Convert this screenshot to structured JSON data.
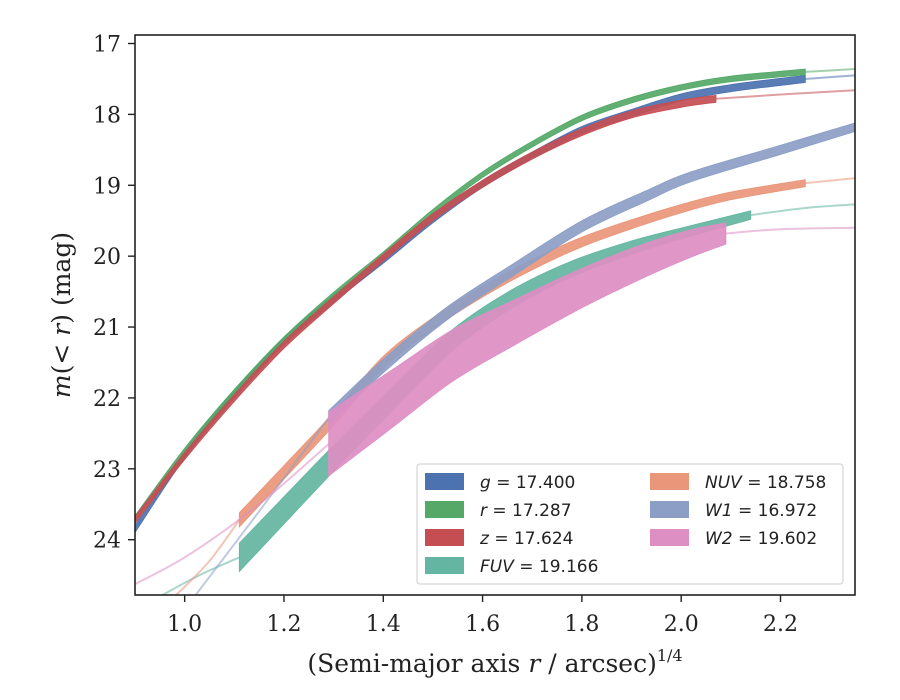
{
  "chart_data": {
    "type": "line",
    "xlabel_prefix": "(Semi-major axis ",
    "xlabel_var": "r",
    "xlabel_mid": " / arcsec)",
    "xlabel_exp": "1/4",
    "ylabel_prefix": "m(< ",
    "ylabel_var": "r",
    "ylabel_suffix": ") (mag)",
    "xlim": [
      0.9,
      2.35
    ],
    "ylim": [
      24.78,
      16.88
    ],
    "y_inverted": true,
    "xticks": [
      "1.0",
      "1.2",
      "1.4",
      "1.6",
      "1.8",
      "2.0",
      "2.2"
    ],
    "yticks": [
      "17",
      "18",
      "19",
      "20",
      "21",
      "22",
      "23",
      "24"
    ],
    "legend_position": "lower-right",
    "legend_columns": 2,
    "series": [
      {
        "name": "g",
        "label_value": "17.400",
        "color": "#4c72b0",
        "data": [
          [
            0.9,
            23.85
          ],
          [
            1.0,
            22.8
          ],
          [
            1.1,
            21.95
          ],
          [
            1.2,
            21.2
          ],
          [
            1.3,
            20.6
          ],
          [
            1.4,
            20.05
          ],
          [
            1.5,
            19.48
          ],
          [
            1.6,
            18.98
          ],
          [
            1.7,
            18.58
          ],
          [
            1.8,
            18.22
          ],
          [
            1.9,
            17.98
          ],
          [
            2.0,
            17.76
          ],
          [
            2.1,
            17.63
          ],
          [
            2.25,
            17.5
          ]
        ],
        "halfwidth": 0.05,
        "model": [
          [
            2.25,
            17.5
          ],
          [
            2.35,
            17.45
          ]
        ]
      },
      {
        "name": "r",
        "label_value": "17.287",
        "color": "#55a868",
        "data": [
          [
            0.9,
            23.7
          ],
          [
            1.0,
            22.75
          ],
          [
            1.1,
            21.92
          ],
          [
            1.2,
            21.18
          ],
          [
            1.3,
            20.55
          ],
          [
            1.4,
            19.98
          ],
          [
            1.5,
            19.38
          ],
          [
            1.6,
            18.85
          ],
          [
            1.7,
            18.42
          ],
          [
            1.8,
            18.05
          ],
          [
            1.9,
            17.8
          ],
          [
            2.0,
            17.62
          ],
          [
            2.1,
            17.5
          ],
          [
            2.25,
            17.4
          ]
        ],
        "halfwidth": 0.04,
        "model": [
          [
            2.25,
            17.4
          ],
          [
            2.35,
            17.36
          ]
        ]
      },
      {
        "name": "z",
        "label_value": "17.624",
        "color": "#c44e52",
        "data": [
          [
            0.9,
            23.72
          ],
          [
            1.0,
            22.82
          ],
          [
            1.1,
            22.0
          ],
          [
            1.2,
            21.25
          ],
          [
            1.3,
            20.62
          ],
          [
            1.4,
            20.02
          ],
          [
            1.5,
            19.45
          ],
          [
            1.6,
            18.98
          ],
          [
            1.7,
            18.58
          ],
          [
            1.8,
            18.25
          ],
          [
            1.9,
            18.0
          ],
          [
            2.0,
            17.85
          ],
          [
            2.07,
            17.78
          ]
        ],
        "halfwidth": 0.05,
        "model": [
          [
            2.07,
            17.78
          ],
          [
            2.2,
            17.72
          ],
          [
            2.35,
            17.66
          ]
        ]
      },
      {
        "name": "FUV",
        "label_value": "19.166",
        "color": "#64b5a1",
        "data": [
          [
            1.11,
            24.25
          ],
          [
            1.3,
            22.85
          ],
          [
            1.42,
            22.0
          ],
          [
            1.54,
            21.18
          ],
          [
            1.66,
            20.6
          ],
          [
            1.78,
            20.18
          ],
          [
            1.9,
            19.88
          ],
          [
            2.0,
            19.68
          ],
          [
            2.14,
            19.42
          ]
        ],
        "halfwidth": 0.2,
        "halfwidth_end": 0.06,
        "model": [
          [
            0.95,
            24.8
          ],
          [
            1.03,
            24.5
          ],
          [
            1.11,
            24.25
          ]
        ],
        "model_tail": [
          [
            2.14,
            19.42
          ],
          [
            2.25,
            19.32
          ],
          [
            2.35,
            19.27
          ]
        ]
      },
      {
        "name": "NUV",
        "label_value": "18.758",
        "color": "#e9967a",
        "data": [
          [
            1.11,
            23.72
          ],
          [
            1.2,
            23.05
          ],
          [
            1.3,
            22.3
          ],
          [
            1.4,
            21.5
          ],
          [
            1.5,
            20.95
          ],
          [
            1.6,
            20.5
          ],
          [
            1.7,
            20.12
          ],
          [
            1.8,
            19.8
          ],
          [
            1.9,
            19.55
          ],
          [
            2.0,
            19.33
          ],
          [
            2.1,
            19.15
          ],
          [
            2.25,
            18.97
          ]
        ],
        "halfwidth": 0.1,
        "halfwidth_end": 0.05,
        "model": [
          [
            0.98,
            24.8
          ],
          [
            1.05,
            24.3
          ],
          [
            1.11,
            23.72
          ]
        ],
        "model_tail": [
          [
            2.25,
            18.97
          ],
          [
            2.35,
            18.9
          ]
        ]
      },
      {
        "name": "W1",
        "label_value": "16.972",
        "color": "#8c9ec6",
        "data": [
          [
            1.29,
            22.28
          ],
          [
            1.4,
            21.55
          ],
          [
            1.53,
            20.8
          ],
          [
            1.66,
            20.2
          ],
          [
            1.8,
            19.58
          ],
          [
            1.93,
            19.15
          ],
          [
            2.02,
            18.88
          ],
          [
            2.2,
            18.5
          ],
          [
            2.35,
            18.18
          ]
        ],
        "halfwidth": 0.1,
        "halfwidth_end": 0.06,
        "model": [
          [
            1.02,
            24.8
          ],
          [
            1.15,
            23.6
          ],
          [
            1.29,
            22.28
          ]
        ]
      },
      {
        "name": "W2",
        "label_value": "19.602",
        "color": "#dd8ec3",
        "data": [
          [
            1.29,
            22.65
          ],
          [
            1.42,
            22.0
          ],
          [
            1.54,
            21.4
          ],
          [
            1.66,
            20.95
          ],
          [
            1.8,
            20.45
          ],
          [
            1.93,
            20.05
          ],
          [
            2.02,
            19.82
          ],
          [
            2.09,
            19.68
          ]
        ],
        "halfwidth": 0.45,
        "halfwidth_end": 0.15,
        "model": [
          [
            0.85,
            24.8
          ],
          [
            1.0,
            24.25
          ],
          [
            1.15,
            23.5
          ],
          [
            1.29,
            22.65
          ]
        ],
        "model_tail": [
          [
            2.09,
            19.68
          ],
          [
            2.2,
            19.62
          ],
          [
            2.35,
            19.6
          ]
        ]
      }
    ]
  }
}
